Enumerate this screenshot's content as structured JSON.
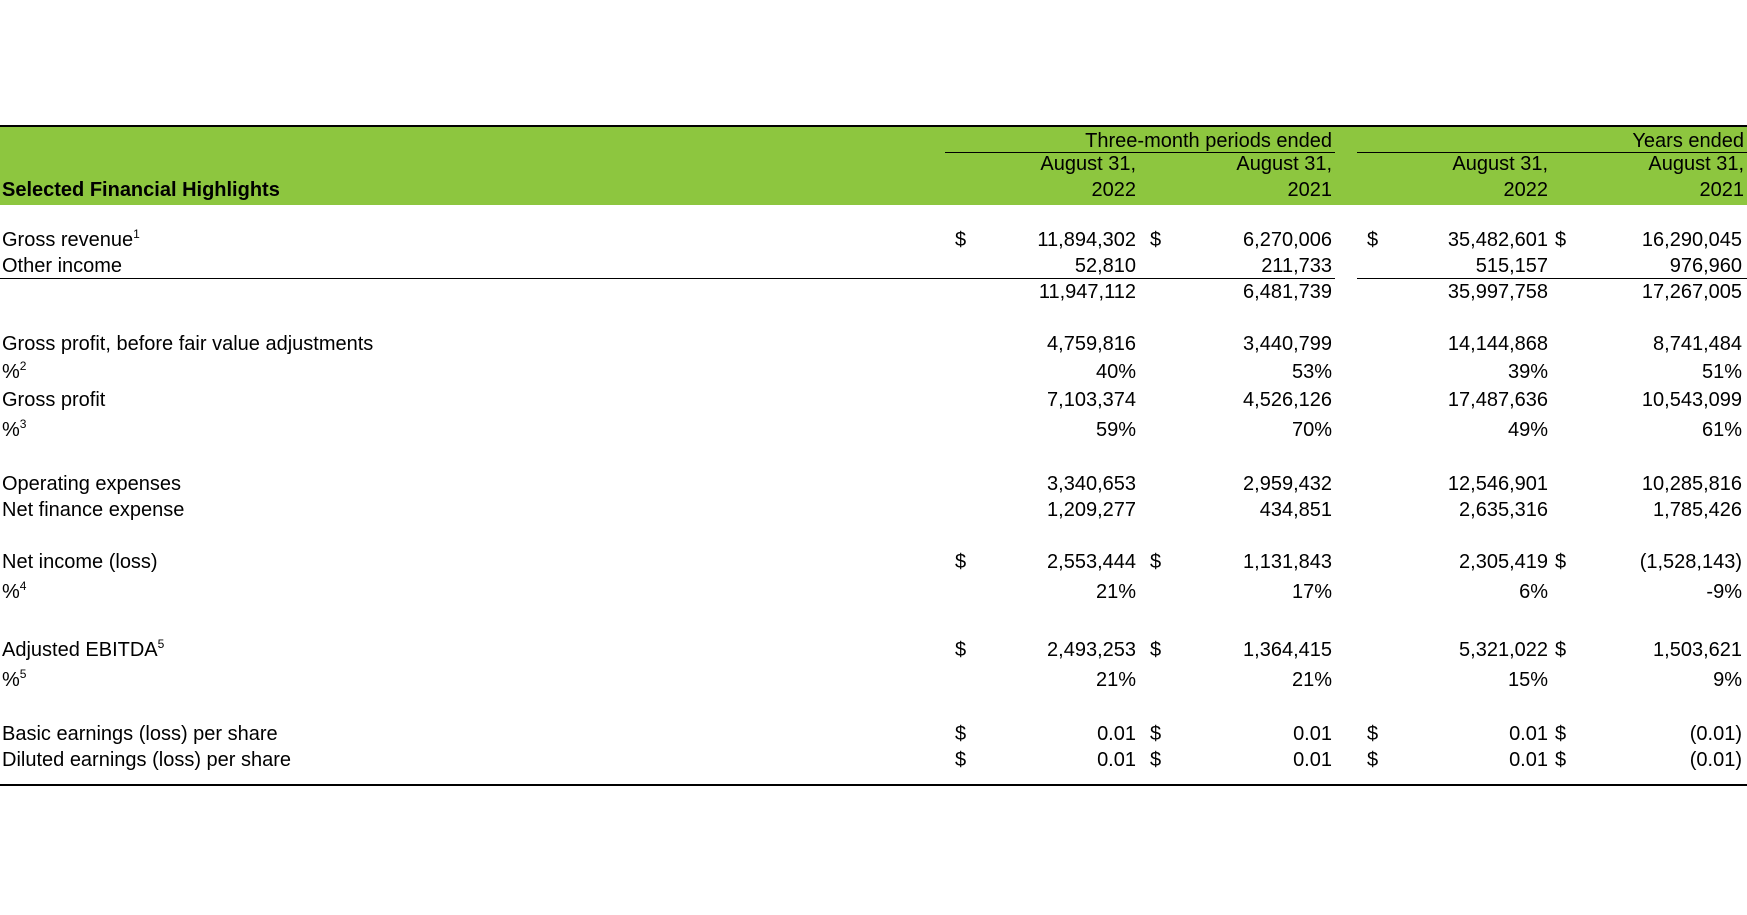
{
  "table": {
    "title": "Selected Financial Highlights",
    "group_headers": {
      "three_month": "Three-month periods ended",
      "years": "Years ended"
    },
    "columns": [
      {
        "date": "August 31,",
        "year": "2022"
      },
      {
        "date": "August 31,",
        "year": "2021"
      },
      {
        "date": "August 31,",
        "year": "2022"
      },
      {
        "date": "August 31,",
        "year": "2021"
      }
    ],
    "currency_symbol": "$",
    "rows": [
      {
        "label": "Gross revenue",
        "sup": "1",
        "values": [
          "11,894,302",
          "6,270,006",
          "35,482,601",
          "16,290,045"
        ],
        "dollars": [
          true,
          true,
          true,
          true
        ]
      },
      {
        "label": "Other income",
        "sup": "",
        "values": [
          "52,810",
          "211,733",
          "515,157",
          "976,960"
        ],
        "dollars": [
          false,
          false,
          false,
          false
        ]
      },
      {
        "label": "",
        "sup": "",
        "values": [
          "11,947,112",
          "6,481,739",
          "35,997,758",
          "17,267,005"
        ],
        "dollars": [
          false,
          false,
          false,
          false
        ]
      },
      {
        "label": "Gross profit, before fair value adjustments",
        "sup": "",
        "values": [
          "4,759,816",
          "3,440,799",
          "14,144,868",
          "8,741,484"
        ],
        "dollars": [
          false,
          false,
          false,
          false
        ]
      },
      {
        "label": "%",
        "sup": "2",
        "values": [
          "40%",
          "53%",
          "39%",
          "51%"
        ],
        "dollars": [
          false,
          false,
          false,
          false
        ]
      },
      {
        "label": "Gross profit",
        "sup": "",
        "values": [
          "7,103,374",
          "4,526,126",
          "17,487,636",
          "10,543,099"
        ],
        "dollars": [
          false,
          false,
          false,
          false
        ]
      },
      {
        "label": "%",
        "sup": "3",
        "values": [
          "59%",
          "70%",
          "49%",
          "61%"
        ],
        "dollars": [
          false,
          false,
          false,
          false
        ]
      },
      {
        "label": "Operating expenses",
        "sup": "",
        "values": [
          "3,340,653",
          "2,959,432",
          "12,546,901",
          "10,285,816"
        ],
        "dollars": [
          false,
          false,
          false,
          false
        ]
      },
      {
        "label": "Net finance expense",
        "sup": "",
        "values": [
          "1,209,277",
          "434,851",
          "2,635,316",
          "1,785,426"
        ],
        "dollars": [
          false,
          false,
          false,
          false
        ]
      },
      {
        "label": "Net income (loss)",
        "sup": "",
        "values": [
          "2,553,444",
          "1,131,843",
          "2,305,419",
          "(1,528,143)"
        ],
        "dollars": [
          true,
          true,
          false,
          true
        ]
      },
      {
        "label": "%",
        "sup": "4",
        "values": [
          "21%",
          "17%",
          "6%",
          "-9%"
        ],
        "dollars": [
          false,
          false,
          false,
          false
        ]
      },
      {
        "label": "Adjusted EBITDA",
        "sup": "5",
        "values": [
          "2,493,253",
          "1,364,415",
          "5,321,022",
          "1,503,621"
        ],
        "dollars": [
          true,
          true,
          false,
          true
        ]
      },
      {
        "label": "%",
        "sup": "5",
        "values": [
          "21%",
          "21%",
          "15%",
          "9%"
        ],
        "dollars": [
          false,
          false,
          false,
          false
        ]
      },
      {
        "label": "Basic earnings (loss) per share",
        "sup": "",
        "values": [
          "0.01",
          "0.01",
          "0.01",
          "(0.01)"
        ],
        "dollars": [
          true,
          true,
          true,
          true
        ]
      },
      {
        "label": "Diluted earnings (loss) per share",
        "sup": "",
        "values": [
          "0.01",
          "0.01",
          "0.01",
          "(0.01)"
        ],
        "dollars": [
          true,
          true,
          true,
          true
        ]
      }
    ],
    "colors": {
      "header_band": "#8dc63f",
      "text": "#000000",
      "background": "#ffffff"
    }
  }
}
